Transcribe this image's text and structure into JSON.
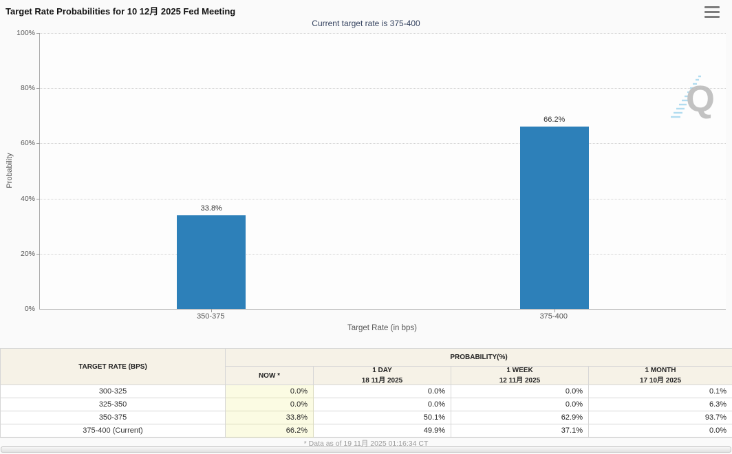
{
  "page": {
    "title": "Target Rate Probabilities for 10 12月 2025 Fed Meeting",
    "subtitle": "Current target rate is 375-400"
  },
  "chart_data": {
    "type": "bar",
    "title": "Target Rate Probabilities for 10 12月 2025 Fed Meeting",
    "subtitle": "Current target rate is 375-400",
    "categories": [
      "350-375",
      "375-400"
    ],
    "values": [
      33.8,
      66.2
    ],
    "value_labels": [
      "33.8%",
      "66.2%"
    ],
    "xlabel": "Target Rate (in bps)",
    "ylabel": "Probability",
    "ylim": [
      0,
      100
    ],
    "yticks": [
      "100%",
      "80%",
      "60%",
      "40%",
      "20%",
      "0%"
    ],
    "grid": "horizontal-dotted",
    "legend": "none",
    "bar_color": "#2d80b9",
    "watermark_letter": "Q"
  },
  "table": {
    "corner_header": "TARGET RATE (BPS)",
    "group_header": "PROBABILITY(%)",
    "columns": [
      {
        "label": "NOW *",
        "sublabel": ""
      },
      {
        "label": "1 DAY",
        "sublabel": "18 11月 2025"
      },
      {
        "label": "1 WEEK",
        "sublabel": "12 11月 2025"
      },
      {
        "label": "1 MONTH",
        "sublabel": "17 10月 2025"
      }
    ],
    "rows": [
      {
        "label": "300-325",
        "now": "0.0%",
        "one_day": "0.0%",
        "one_week": "0.0%",
        "one_month": "0.1%"
      },
      {
        "label": "325-350",
        "now": "0.0%",
        "one_day": "0.0%",
        "one_week": "0.0%",
        "one_month": "6.3%"
      },
      {
        "label": "350-375",
        "now": "33.8%",
        "one_day": "50.1%",
        "one_week": "62.9%",
        "one_month": "93.7%"
      },
      {
        "label": "375-400 (Current)",
        "now": "66.2%",
        "one_day": "49.9%",
        "one_week": "37.1%",
        "one_month": "0.0%"
      }
    ],
    "footnote": "* Data as of 19 11月 2025 01:16:34 CT"
  },
  "colors": {
    "bar": "#2d80b9",
    "subtitle_text": "#33415e",
    "now_column_bg": "#fbfbe3",
    "table_header_bg": "#f6f2e7",
    "page_bg": "#fafafa"
  }
}
